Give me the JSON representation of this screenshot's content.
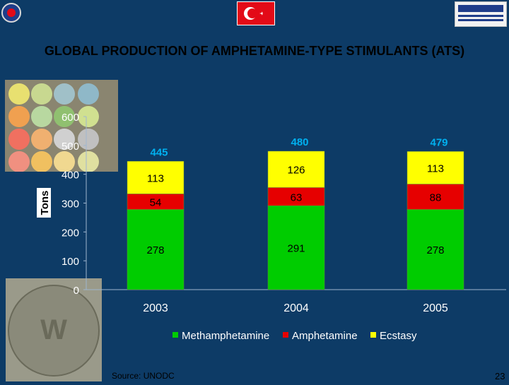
{
  "slide": {
    "title": "GLOBAL PRODUCTION OF AMPHETAMINE-TYPE STIMULANTS (ATS)",
    "source": "Source: UNODC",
    "page_number": "23",
    "flag_glyph": "☪"
  },
  "colors": {
    "background": "#0d3b66",
    "methamphetamine": "#00cc00",
    "amphetamine": "#e60000",
    "ecstasy": "#ffff00",
    "total_label": "#00b0f0",
    "axis_text": "#ffffff"
  },
  "chart_data": {
    "type": "bar",
    "stacked": true,
    "title": "",
    "xlabel": "",
    "ylabel": "Tons",
    "categories": [
      "2003",
      "2004",
      "2005"
    ],
    "series": [
      {
        "name": "Methamphetamine",
        "values": [
          278,
          291,
          278
        ]
      },
      {
        "name": "Amphetamine",
        "values": [
          54,
          63,
          88
        ]
      },
      {
        "name": "Ecstasy",
        "values": [
          113,
          126,
          113
        ]
      }
    ],
    "totals": [
      445,
      480,
      479
    ],
    "ylim": [
      0,
      600
    ],
    "yticks": [
      "0",
      "100",
      "200",
      "300",
      "400",
      "500",
      "600"
    ],
    "grid": false,
    "legend_position": "bottom"
  }
}
